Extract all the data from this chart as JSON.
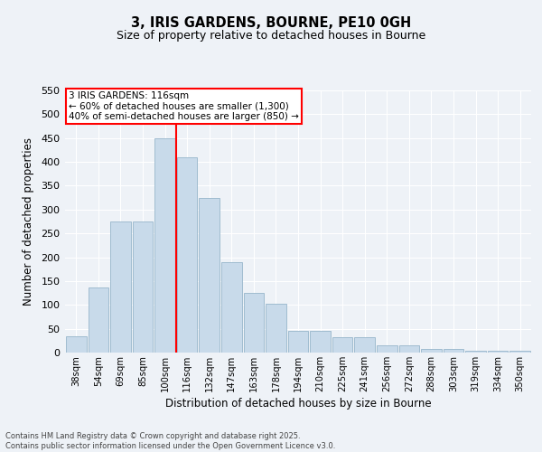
{
  "title": "3, IRIS GARDENS, BOURNE, PE10 0GH",
  "subtitle": "Size of property relative to detached houses in Bourne",
  "xlabel": "Distribution of detached houses by size in Bourne",
  "ylabel": "Number of detached properties",
  "bar_color": "#c8daea",
  "bar_edge_color": "#a0bcd0",
  "background_color": "#eef2f7",
  "grid_color": "#ffffff",
  "categories": [
    "38sqm",
    "54sqm",
    "69sqm",
    "85sqm",
    "100sqm",
    "116sqm",
    "132sqm",
    "147sqm",
    "163sqm",
    "178sqm",
    "194sqm",
    "210sqm",
    "225sqm",
    "241sqm",
    "256sqm",
    "272sqm",
    "288sqm",
    "303sqm",
    "319sqm",
    "334sqm",
    "350sqm"
  ],
  "values": [
    35,
    137,
    275,
    275,
    450,
    410,
    325,
    190,
    125,
    103,
    46,
    45,
    32,
    32,
    16,
    16,
    7,
    7,
    4,
    4,
    4
  ],
  "marker_idx": 5,
  "marker_label": "3 IRIS GARDENS: 116sqm",
  "annotation_line1": "← 60% of detached houses are smaller (1,300)",
  "annotation_line2": "40% of semi-detached houses are larger (850) →",
  "ylim": [
    0,
    550
  ],
  "yticks": [
    0,
    50,
    100,
    150,
    200,
    250,
    300,
    350,
    400,
    450,
    500,
    550
  ],
  "footnote1": "Contains HM Land Registry data © Crown copyright and database right 2025.",
  "footnote2": "Contains public sector information licensed under the Open Government Licence v3.0."
}
